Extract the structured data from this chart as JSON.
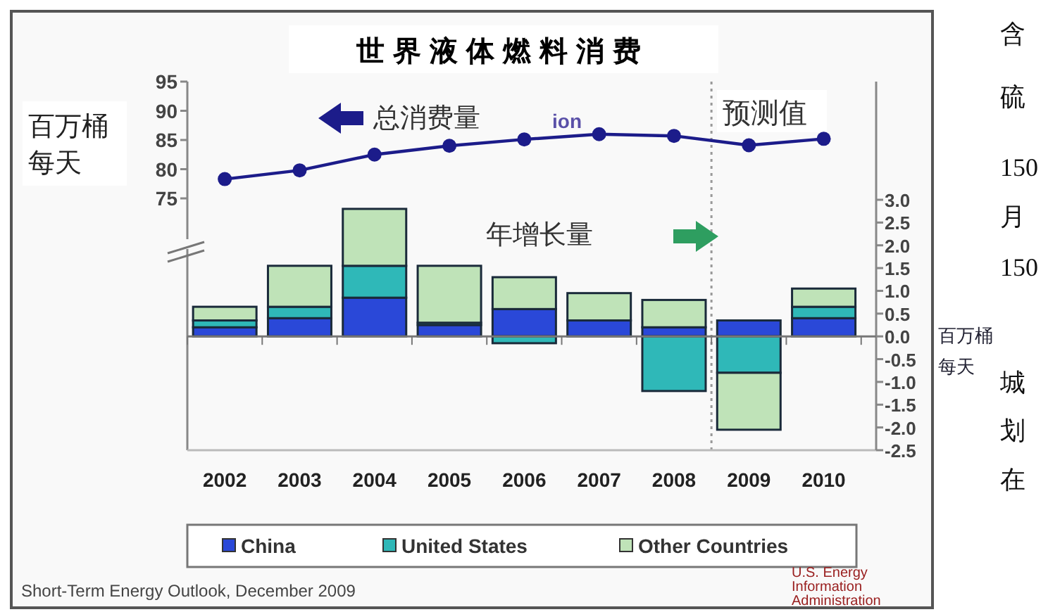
{
  "chart_data": [
    {
      "type": "line",
      "title": "世界液体燃料消费",
      "ylabel": "百万桶每天",
      "x": [
        2002,
        2003,
        2004,
        2005,
        2006,
        2007,
        2008,
        2009,
        2010
      ],
      "ylim": [
        75,
        95
      ],
      "yticks": [
        75,
        80,
        85,
        90,
        95
      ],
      "tick_labels": "y",
      "marker": "circle",
      "series": [
        {
          "color": "#1c1c8a",
          "values": [
            78.3,
            79.8,
            82.5,
            84.0,
            85.1,
            86.0,
            85.7,
            84.1,
            85.2
          ]
        }
      ],
      "annotations": [
        "总消费量",
        "ion",
        "预测值"
      ]
    },
    {
      "type": "bar",
      "stacked": true,
      "x": [
        2002,
        2003,
        2004,
        2005,
        2006,
        2007,
        2008,
        2009,
        2010
      ],
      "xlim": [
        2001.5,
        2010.7
      ],
      "xticks": [
        2002,
        2003,
        2004,
        2005,
        2006,
        2007,
        2008,
        2009,
        2010
      ],
      "y2label": "百万桶每天",
      "y2lim": [
        -2.5,
        3.0
      ],
      "y2ticks": [
        {
          "value": -2.5,
          "label": "-2.5"
        },
        {
          "value": -2.0,
          "label": "-2.0"
        },
        {
          "value": -1.5,
          "label": "-1.5"
        },
        {
          "value": -1.0,
          "label": "-1.0"
        },
        {
          "value": -0.5,
          "label": "-0.5"
        },
        {
          "value": 0,
          "label": "0.0"
        },
        {
          "value": 0.5,
          "label": "0.5"
        },
        {
          "value": 1.0,
          "label": "1.0"
        },
        {
          "value": 1.5,
          "label": "1.5"
        },
        {
          "value": 2.0,
          "label": "2.0"
        },
        {
          "value": 2.5,
          "label": "2.5"
        },
        {
          "value": 3.0,
          "label": "3.0"
        }
      ],
      "legend": "bottom",
      "series": [
        {
          "name": "China",
          "color": "#2a48d8",
          "axis": "y2",
          "values": [
            0.2,
            0.4,
            0.85,
            0.25,
            0.6,
            0.35,
            0.2,
            0.35,
            0.4
          ]
        },
        {
          "name": "United States",
          "color": "#2fb8b8",
          "axis": "y2",
          "values": [
            0.15,
            0.25,
            0.7,
            0.05,
            -0.15,
            0,
            -1.2,
            -0.8,
            0.25
          ]
        },
        {
          "name": "Other Countries",
          "color": "#bfe3b8",
          "axis": "y2",
          "values": [
            0.3,
            0.9,
            1.25,
            1.25,
            0.7,
            0.6,
            0.6,
            -1.25,
            0.4
          ]
        }
      ],
      "annotations": [
        "年增长量"
      ]
    },
    {
      "type": "other",
      "annotations": [
        "Short-Term Energy Outlook, December 2009",
        "U.S. Energy Information Administration",
        "含",
        "硫",
        "150",
        "月",
        "150",
        "城",
        "划",
        "在"
      ]
    }
  ]
}
